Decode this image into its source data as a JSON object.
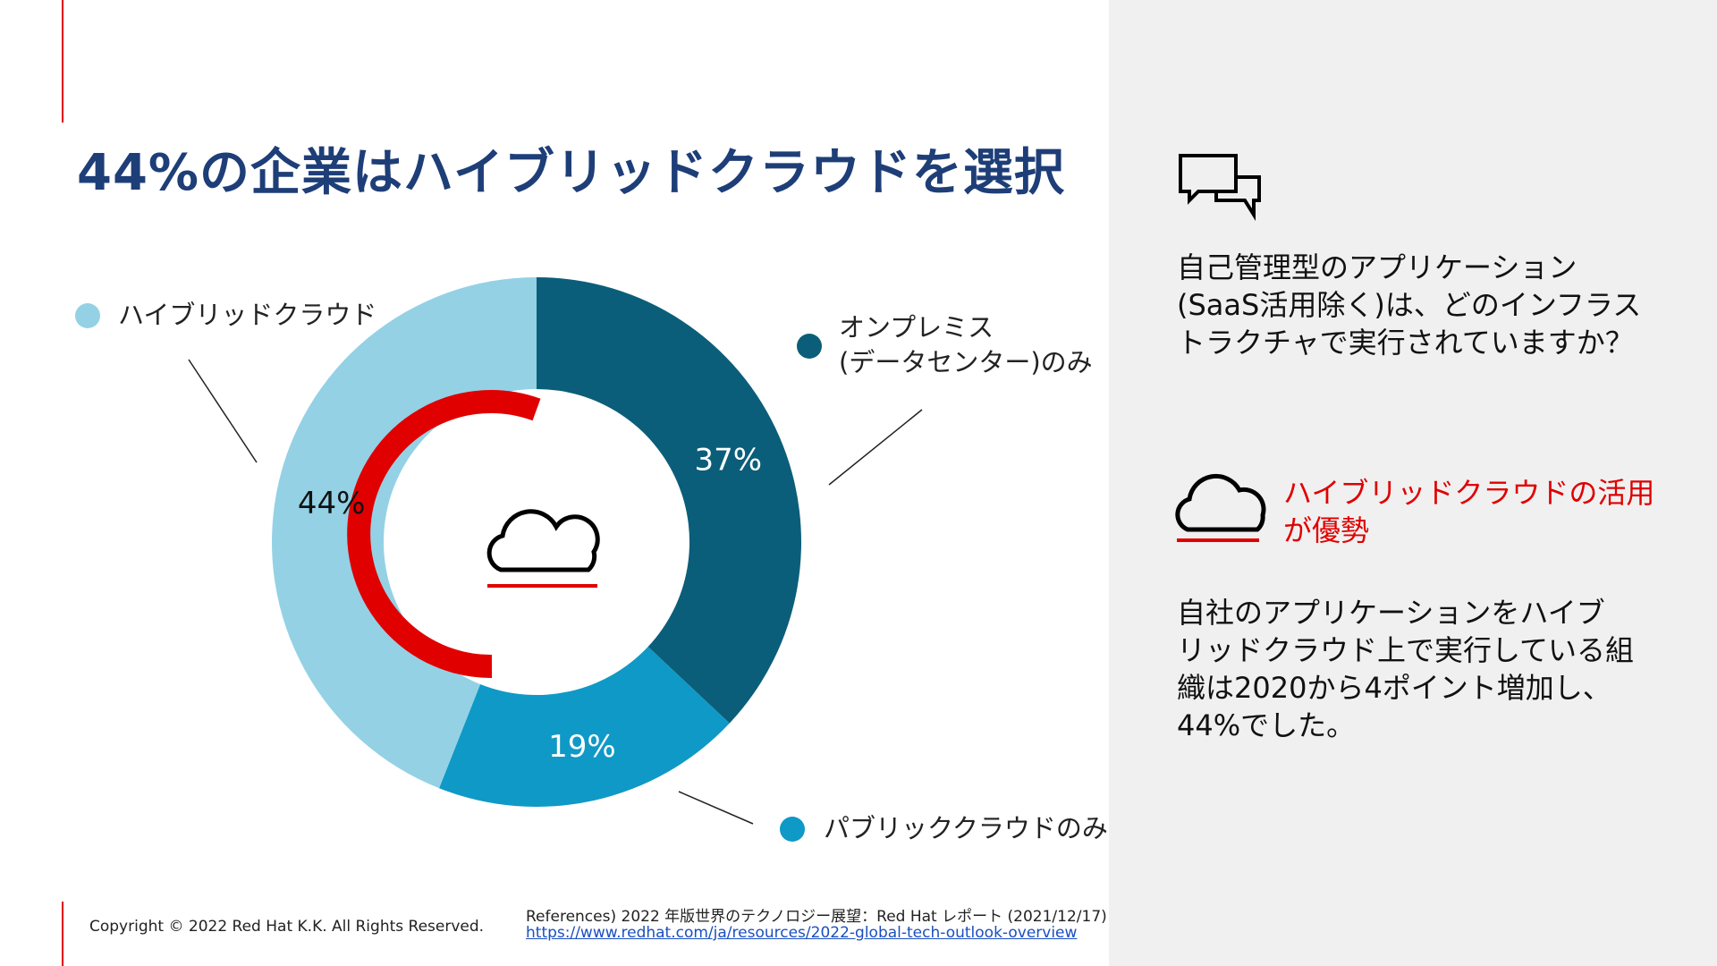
{
  "chart_data": {
    "type": "donut",
    "title": "44%の企業はハイブリッドクラウドを選択",
    "categories": [
      "オンプレミス\n(データセンター)のみ",
      "パブリッククラウドのみ",
      "ハイブリッドクラウド"
    ],
    "values": [
      37,
      19,
      44
    ],
    "value_labels": [
      "37%",
      "19%",
      "44%"
    ],
    "colors": [
      "#0b5e79",
      "#0f99c6",
      "#94d1e5"
    ]
  },
  "sidebar": {
    "question": "自己管理型のアプリケーション\n(SaaS活用除く)は、どのインフラス\nトラクチャで実行されていますか？",
    "highlight": "ハイブリッドクラウドの活用\nが優勢",
    "body": "自社のアプリケーションをハイブ\nリッドクラウド上で実行している組\n織は2020から4ポイント増加し、\n44%でした。"
  },
  "footer": {
    "copyright": "Copyright © 2022 Red Hat K.K. All Rights Reserved.",
    "reference": "References) 2022 年版世界のテクノロジー展望：Red Hat レポート (2021/12/17)",
    "link": "https://www.redhat.com/ja/resources/2022-global-tech-outlook-overview"
  }
}
